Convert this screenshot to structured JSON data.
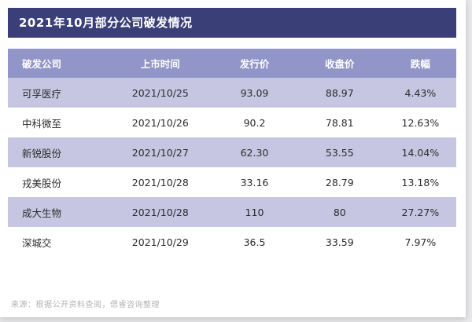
{
  "chart_data": {
    "type": "table",
    "title": "2021年10月部分公司破发情况",
    "columns": [
      "破发公司",
      "上市时间",
      "发行价",
      "收盘价",
      "跌幅"
    ],
    "rows": [
      [
        "可孚医疗",
        "2021/10/25",
        "93.09",
        "88.97",
        "4.43%"
      ],
      [
        "中科微至",
        "2021/10/26",
        "90.2",
        "78.81",
        "12.63%"
      ],
      [
        "新锐股份",
        "2021/10/27",
        "62.30",
        "53.55",
        "14.04%"
      ],
      [
        "戎美股份",
        "2021/10/28",
        "33.16",
        "28.79",
        "13.18%"
      ],
      [
        "成大生物",
        "2021/10/28",
        "110",
        "80",
        "27.27%"
      ],
      [
        "深城交",
        "2021/10/29",
        "36.5",
        "33.59",
        "7.97%"
      ]
    ]
  },
  "source_note": "来源：根据公开资料查阅，偲睿咨询整理",
  "colors": {
    "title_bar_bg": "#3a3f78",
    "header_bg": "#9295c7",
    "alt_row_bg": "#c7c6e2",
    "plain_row_bg": "#ffffff",
    "title_text": "#ffffff",
    "source_text": "#b4b4b8"
  }
}
